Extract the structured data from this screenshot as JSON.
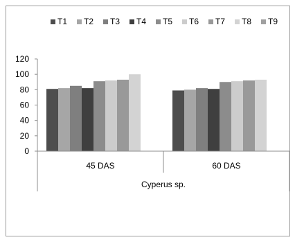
{
  "chart_data": {
    "type": "bar",
    "categories": [
      "45 DAS",
      "60 DAS"
    ],
    "group_label": "Cyperus sp.",
    "series": [
      {
        "name": "T1",
        "color": "#4d4d4d",
        "values": [
          81,
          79
        ]
      },
      {
        "name": "T2",
        "color": "#a6a6a6",
        "values": [
          82,
          80
        ]
      },
      {
        "name": "T3",
        "color": "#7f7f7f",
        "values": [
          85,
          82
        ]
      },
      {
        "name": "T4",
        "color": "#3f3f3f",
        "values": [
          82,
          81
        ]
      },
      {
        "name": "T5",
        "color": "#8c8c8c",
        "values": [
          91,
          90
        ]
      },
      {
        "name": "T6",
        "color": "#cccccc",
        "values": [
          92,
          91
        ]
      },
      {
        "name": "T7",
        "color": "#999999",
        "values": [
          93,
          92
        ]
      },
      {
        "name": "T8",
        "color": "#d3d3d3",
        "values": [
          100,
          93
        ]
      },
      {
        "name": "T9",
        "color": "#a0a0a0",
        "values": [
          null,
          null
        ]
      }
    ],
    "yticks": [
      0,
      20,
      40,
      60,
      80,
      100,
      120
    ],
    "ylim": [
      0,
      120
    ],
    "legend_position": "top",
    "grid": false
  }
}
